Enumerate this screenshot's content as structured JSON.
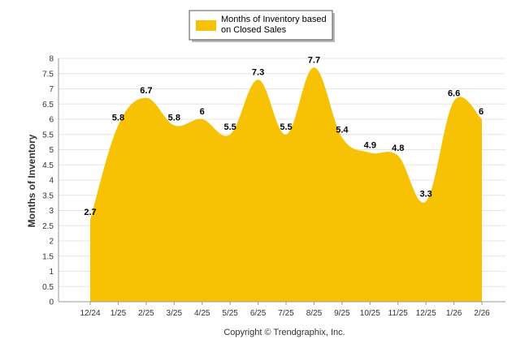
{
  "chart_data": {
    "type": "area",
    "legend": {
      "label_line1": "Months of Inventory based",
      "label_line2": "on Closed Sales",
      "position": "top-center"
    },
    "ylabel": "Months of Inventory",
    "xlabel": "",
    "ylim": [
      0,
      8
    ],
    "yticks": [
      "0",
      "0.5",
      "1",
      "1.5",
      "2",
      "2.5",
      "3",
      "3.5",
      "4",
      "4.5",
      "5",
      "5.5",
      "6",
      "6.5",
      "7",
      "7.5",
      "8"
    ],
    "categories": [
      "12/24",
      "1/25",
      "2/25",
      "3/25",
      "4/25",
      "5/25",
      "6/25",
      "7/25",
      "8/25",
      "9/25",
      "10/25",
      "11/25",
      "12/25",
      "1/26",
      "2/26"
    ],
    "series": [
      {
        "name": "Months of Inventory based on Closed Sales",
        "values": [
          2.7,
          5.8,
          6.7,
          5.8,
          6,
          5.5,
          7.3,
          5.5,
          7.7,
          5.4,
          4.9,
          4.8,
          3.3,
          6.6,
          6
        ],
        "labels": [
          "2.7",
          "5.8",
          "6.7",
          "5.8",
          "6",
          "5.5",
          "7.3",
          "5.5",
          "7.7",
          "5.4",
          "4.9",
          "4.8",
          "3.3",
          "6.6",
          "6"
        ]
      }
    ],
    "grid": true,
    "colors": {
      "fill": "#F7C204",
      "grid": "#e6e6e6",
      "axis": "#999999",
      "text": "#333333"
    }
  },
  "footer": {
    "copyright": "Copyright © Trendgraphix, Inc."
  }
}
